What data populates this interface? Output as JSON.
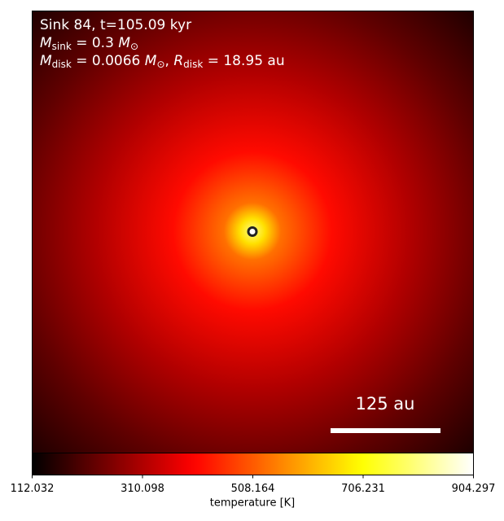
{
  "chart_data": {
    "type": "image",
    "annotations": {
      "line1": [
        "Sink 84, t=105.09 kyr"
      ],
      "line2": [
        "M",
        "sink",
        " = 0.3 ",
        "M",
        "⊙"
      ],
      "line3": [
        "M",
        "disk",
        " = 0.0066 ",
        "M",
        "⊙",
        ", ",
        "R",
        "disk",
        " = 18.95 au"
      ],
      "scale_bar": "125 au"
    },
    "colormap": "hot",
    "colorbar_label": "temperature [K]",
    "clim": [
      112.032,
      904.297
    ],
    "cticks": [
      112.032,
      310.098,
      508.164,
      706.231,
      904.297
    ]
  }
}
